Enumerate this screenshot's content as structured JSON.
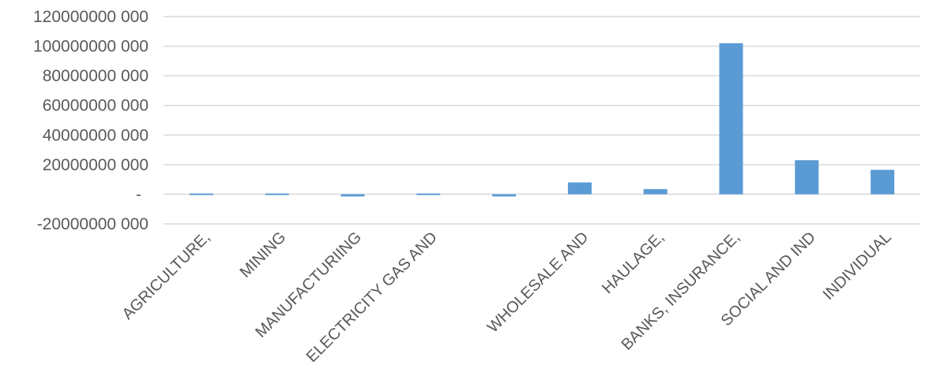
{
  "chart_data": {
    "type": "bar",
    "title": "",
    "xlabel": "",
    "ylabel": "",
    "categories": [
      "AGRICULTURE,",
      "MINING",
      "MANUFACTURIING",
      "ELECTRICITY GAS AND",
      "",
      "WHOLESALE AND",
      "HAULAGE,",
      "BANKS, INSURANCE,",
      "SOCIAL AND IND",
      "INDIVIDUAL"
    ],
    "series": [
      {
        "values": [
          -100000000,
          300000000,
          -1500000000,
          200000000,
          -1500000000,
          8000000000,
          3500000000,
          102000000000,
          23000000000,
          16500000000
        ],
        "color": "#5b9bd5"
      }
    ],
    "ylim": [
      -20000000000,
      120000000000
    ],
    "yticks": [
      {
        "value": 120000000000,
        "label": "120000000 000"
      },
      {
        "value": 100000000000,
        "label": "100000000 000"
      },
      {
        "value": 80000000000,
        "label": "80000000 000"
      },
      {
        "value": 60000000000,
        "label": "60000000 000"
      },
      {
        "value": 40000000000,
        "label": "40000000 000"
      },
      {
        "value": 20000000000,
        "label": "20000000 000"
      },
      {
        "value": 0,
        "label": "-"
      },
      {
        "value": -20000000000,
        "label": "-20000000 000"
      }
    ],
    "grid": true,
    "gridline_color": "#d9d9d9",
    "text_color": "#595959",
    "legend": "none"
  }
}
